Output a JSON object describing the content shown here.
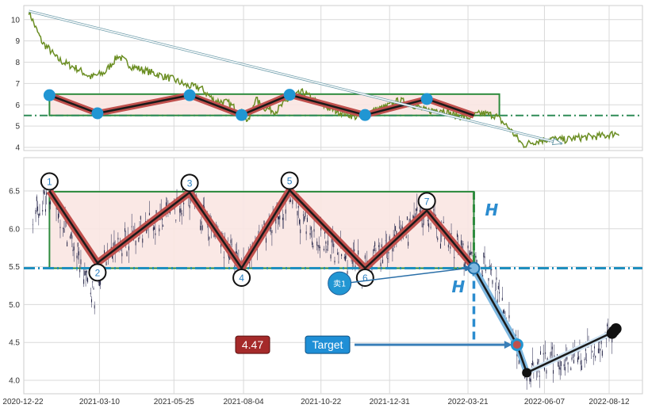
{
  "chart_data": [
    {
      "type": "line",
      "panel": "overview",
      "xlabel": "",
      "ylabel": "",
      "ylim": [
        3.8,
        10.6
      ],
      "yticks": [
        4,
        5,
        6,
        7,
        8,
        9,
        10
      ],
      "grid": true,
      "series": [
        {
          "color": "#6b8e23",
          "x": [
            "2020-12-28",
            "2021-01-04",
            "2021-01-11",
            "2021-01-18",
            "2021-01-25",
            "2021-02-01",
            "2021-02-15",
            "2021-03-01",
            "2021-03-15",
            "2021-03-29",
            "2021-04-12",
            "2021-04-26",
            "2021-05-10",
            "2021-05-24",
            "2021-06-07",
            "2021-06-21",
            "2021-07-05",
            "2021-07-19",
            "2021-08-02",
            "2021-08-09",
            "2021-08-16",
            "2021-08-23",
            "2021-09-06",
            "2021-09-20",
            "2021-10-04",
            "2021-10-18",
            "2021-11-01",
            "2021-11-15",
            "2021-11-29",
            "2021-12-13",
            "2021-12-27",
            "2022-01-10",
            "2022-01-24",
            "2022-02-07",
            "2022-02-21",
            "2022-03-07",
            "2022-03-21",
            "2022-04-04",
            "2022-04-18",
            "2022-05-02",
            "2022-05-16",
            "2022-05-30",
            "2022-06-13",
            "2022-06-27",
            "2022-07-11",
            "2022-07-25",
            "2022-08-08",
            "2022-08-22"
          ],
          "y": [
            10.4,
            9.6,
            8.9,
            8.6,
            8.2,
            8.0,
            7.7,
            7.3,
            7.5,
            8.3,
            7.8,
            7.6,
            7.4,
            7.2,
            6.9,
            6.8,
            6.2,
            6.1,
            5.6,
            5.2,
            6.3,
            5.9,
            5.7,
            6.3,
            6.6,
            6.1,
            5.8,
            5.6,
            5.4,
            5.7,
            5.9,
            6.2,
            6.0,
            5.7,
            5.8,
            5.5,
            5.4,
            5.6,
            5.5,
            4.9,
            4.1,
            4.3,
            4.4,
            4.35,
            4.45,
            4.5,
            4.55,
            4.7
          ]
        }
      ],
      "pattern_points": [
        {
          "x": "2021-01-18",
          "y": 6.45
        },
        {
          "x": "2021-03-08",
          "y": 5.6
        },
        {
          "x": "2021-06-10",
          "y": 6.45
        },
        {
          "x": "2021-08-02",
          "y": 5.52
        },
        {
          "x": "2021-09-20",
          "y": 6.47
        },
        {
          "x": "2021-12-06",
          "y": 5.52
        },
        {
          "x": "2022-02-07",
          "y": 6.27
        },
        {
          "x": "2022-03-27",
          "y": 5.5
        }
      ],
      "rectangle": {
        "x0": "2021-01-18",
        "x1": "2022-03-27",
        "y0": 5.5,
        "y1": 6.5
      },
      "dashdot_level": 5.5,
      "trend_arrow": {
        "x0": "2020-12-28",
        "y0": 10.4,
        "x1": "2022-06-20",
        "y1": 4.1
      }
    },
    {
      "type": "candlestick",
      "panel": "detail",
      "xlabel": "",
      "ylabel": "",
      "ylim": [
        3.88,
        6.92
      ],
      "yticks": [
        4.0,
        4.5,
        5.0,
        5.5,
        6.0,
        6.5
      ],
      "xticks": [
        "2020-12-22",
        "2021-03-10",
        "2021-05-25",
        "2021-08-04",
        "2021-10-22",
        "2021-12-31",
        "2022-03-21",
        "2022-06-07",
        "2022-08-12"
      ],
      "grid": true,
      "price_path": {
        "x": [
          "2021-01-01",
          "2021-01-08",
          "2021-01-18",
          "2021-02-05",
          "2021-02-25",
          "2021-03-05",
          "2021-03-15",
          "2021-04-01",
          "2021-04-20",
          "2021-05-10",
          "2021-05-25",
          "2021-06-10",
          "2021-06-25",
          "2021-07-15",
          "2021-08-02",
          "2021-08-20",
          "2021-09-05",
          "2021-09-20",
          "2021-10-05",
          "2021-10-20",
          "2021-11-05",
          "2021-11-20",
          "2021-12-06",
          "2021-12-25",
          "2022-01-15",
          "2022-02-07",
          "2022-02-25",
          "2022-03-15",
          "2022-03-27",
          "2022-04-10",
          "2022-04-25",
          "2022-05-10",
          "2022-05-20",
          "2022-06-05",
          "2022-06-25",
          "2022-07-15",
          "2022-08-01",
          "2022-08-15"
        ],
        "y": [
          6.1,
          6.3,
          6.5,
          6.0,
          5.3,
          5.15,
          5.6,
          5.8,
          6.0,
          6.1,
          6.2,
          6.45,
          6.1,
          5.8,
          5.5,
          5.8,
          6.1,
          6.45,
          6.0,
          5.9,
          5.7,
          5.6,
          5.5,
          5.7,
          5.95,
          6.25,
          5.9,
          5.7,
          5.5,
          5.5,
          5.0,
          4.47,
          4.1,
          4.2,
          4.3,
          4.3,
          4.45,
          4.6
        ]
      },
      "pattern_points": [
        {
          "label": "1",
          "x": "2021-01-18",
          "y": 6.5
        },
        {
          "label": "2",
          "x": "2021-03-08",
          "y": 5.55
        },
        {
          "label": "3",
          "x": "2021-06-10",
          "y": 6.48
        },
        {
          "label": "4",
          "x": "2021-08-02",
          "y": 5.48
        },
        {
          "label": "5",
          "x": "2021-09-20",
          "y": 6.51
        },
        {
          "label": "6",
          "x": "2021-12-06",
          "y": 5.48
        },
        {
          "label": "7",
          "x": "2022-02-07",
          "y": 6.24
        },
        {
          "label": "",
          "x": "2022-03-27",
          "y": 5.49
        }
      ],
      "rectangle": {
        "x0": "2021-01-18",
        "x1": "2022-03-27",
        "y0": 5.48,
        "y1": 6.49
      },
      "resistance_level": 5.48,
      "breakdown": {
        "x0": "2022-03-27",
        "y0": 5.48,
        "x1": "2022-05-10",
        "y1": 4.47
      },
      "target_line": {
        "x0": "2022-03-27",
        "y0": 5.48,
        "x1": "2022-03-27",
        "y1": 4.47
      },
      "recovery_line": {
        "x0": "2022-05-20",
        "y0": 4.1,
        "x1": "2022-08-15",
        "y1": 4.63
      },
      "end_dots": [
        {
          "x": "2022-08-15",
          "y": 4.62
        },
        {
          "x": "2022-08-17",
          "y": 4.65
        },
        {
          "x": "2022-08-19",
          "y": 4.68
        }
      ],
      "annotations": {
        "height_label": "H",
        "sell_label": "卖1",
        "sell_marker": {
          "x": "2021-11-10",
          "y": 5.28
        },
        "sell_arrow_to": {
          "x": "2022-03-27",
          "y": 5.49
        },
        "target_label": "Target",
        "target_value": "4.47"
      }
    }
  ],
  "colors": {
    "line": "#6b8e23",
    "zigzag_outer": "#c0504d",
    "zigzag_inner": "#1a1a1a",
    "rect_fill": "#f9e5e2",
    "rect_edge": "#2e8b3e",
    "dashdot": "#2e8b57",
    "resistance": "#1f8fbf",
    "accent_blue": "#2b8ccf",
    "target_box": "#1f8fd6",
    "value_box": "#a52a2a",
    "dot_blue": "#2196d3",
    "dot_black": "#111111"
  }
}
